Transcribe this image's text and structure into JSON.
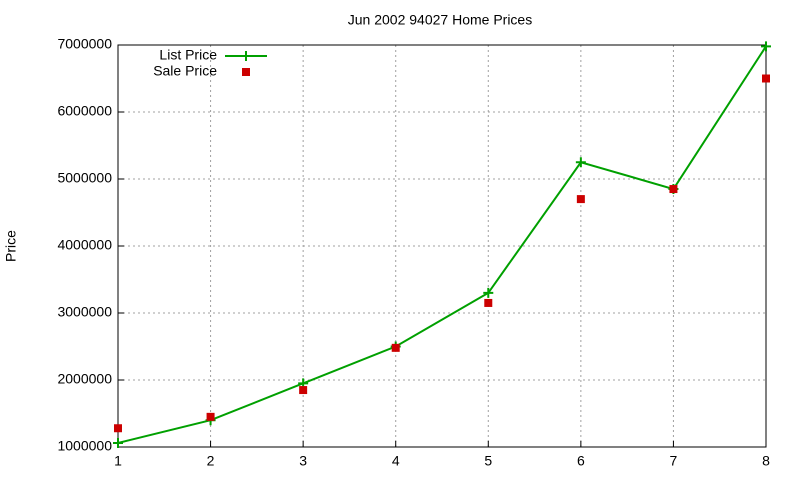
{
  "chart_data": {
    "type": "line",
    "title": "Jun 2002 94027 Home Prices",
    "y_label": "Price",
    "x": [
      1,
      2,
      3,
      4,
      5,
      6,
      7,
      8
    ],
    "series": [
      {
        "name": "List Price",
        "color": "#00a000",
        "style": "linespoints",
        "values": [
          1060000,
          1400000,
          1950000,
          2500000,
          3300000,
          5250000,
          4850000,
          6980000
        ]
      },
      {
        "name": "Sale Price",
        "color": "#cc0000",
        "style": "points",
        "values": [
          1280000,
          1450000,
          1850000,
          2480000,
          3150000,
          4700000,
          4850000,
          6500000
        ]
      }
    ],
    "xlim": [
      1,
      8
    ],
    "xticks": [
      1,
      2,
      3,
      4,
      5,
      6,
      7,
      8
    ],
    "ylim": [
      1000000,
      7000000
    ],
    "yticks": [
      1000000,
      2000000,
      3000000,
      4000000,
      5000000,
      6000000,
      7000000
    ],
    "grid": true,
    "legend": "top-left"
  }
}
